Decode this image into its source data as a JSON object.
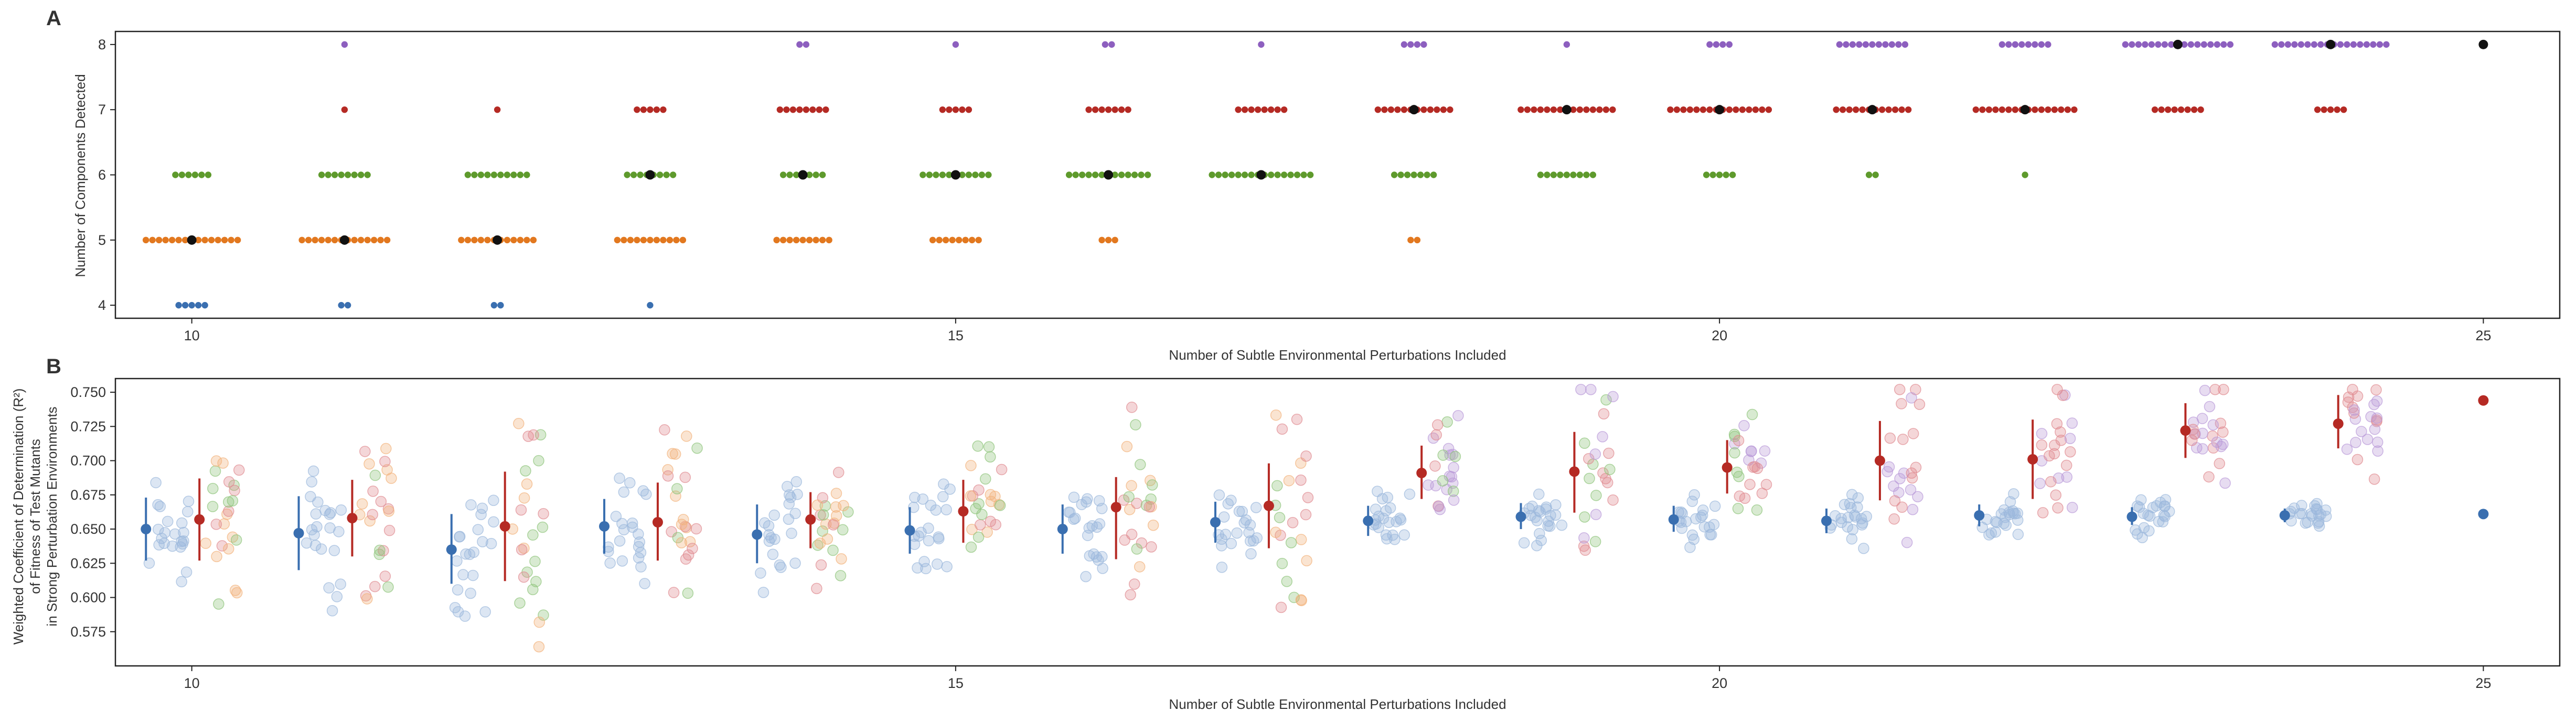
{
  "figure": {
    "panel_a_letter": "A",
    "panel_b_letter": "B"
  },
  "chart_data": [
    {
      "type": "scatter",
      "panel": "A",
      "xlabel": "Number of Subtle Environmental Perturbations Included",
      "ylabel": "Number of Components Detected",
      "xlim": [
        9.5,
        25.5
      ],
      "ylim": [
        3.8,
        8.2
      ],
      "xticks": [
        10,
        15,
        20,
        25
      ],
      "yticks": [
        4,
        5,
        6,
        7,
        8
      ],
      "grid": false,
      "colors": {
        "4": "#3a6fb0",
        "5": "#e2781f",
        "6": "#5e9a2c",
        "7": "#b52a24",
        "8": "#8d5fbf",
        "mean": "#111111"
      },
      "groups": [
        {
          "x": 10,
          "counts": {
            "4": 5,
            "5": 15,
            "6": 6,
            "7": 0,
            "8": 0
          },
          "mean": 5.0
        },
        {
          "x": 11,
          "counts": {
            "4": 2,
            "5": 14,
            "6": 8,
            "7": 1,
            "8": 1
          },
          "mean": 5.0
        },
        {
          "x": 12,
          "counts": {
            "4": 2,
            "5": 12,
            "6": 10,
            "7": 1,
            "8": 0
          },
          "mean": 5.0
        },
        {
          "x": 13,
          "counts": {
            "4": 1,
            "5": 11,
            "6": 8,
            "7": 5,
            "8": 0
          },
          "mean": 6.0
        },
        {
          "x": 14,
          "counts": {
            "4": 0,
            "5": 9,
            "6": 7,
            "7": 8,
            "8": 2
          },
          "mean": 6.0
        },
        {
          "x": 15,
          "counts": {
            "4": 0,
            "5": 8,
            "6": 11,
            "7": 5,
            "8": 1
          },
          "mean": 6.0
        },
        {
          "x": 16,
          "counts": {
            "4": 0,
            "5": 3,
            "6": 13,
            "7": 7,
            "8": 2
          },
          "mean": 6.0
        },
        {
          "x": 17,
          "counts": {
            "4": 0,
            "5": 0,
            "6": 16,
            "7": 8,
            "8": 1
          },
          "mean": 6.0
        },
        {
          "x": 18,
          "counts": {
            "4": 0,
            "5": 2,
            "6": 7,
            "7": 12,
            "8": 4
          },
          "mean": 7.0
        },
        {
          "x": 19,
          "counts": {
            "4": 0,
            "5": 0,
            "6": 9,
            "7": 15,
            "8": 1
          },
          "mean": 7.0
        },
        {
          "x": 20,
          "counts": {
            "4": 0,
            "5": 0,
            "6": 5,
            "7": 16,
            "8": 4
          },
          "mean": 7.0
        },
        {
          "x": 21,
          "counts": {
            "4": 0,
            "5": 0,
            "6": 2,
            "7": 12,
            "8": 11
          },
          "mean": 7.0
        },
        {
          "x": 22,
          "counts": {
            "4": 0,
            "5": 0,
            "6": 1,
            "7": 16,
            "8": 8
          },
          "mean": 7.0
        },
        {
          "x": 23,
          "counts": {
            "4": 0,
            "5": 0,
            "6": 0,
            "7": 8,
            "8": 17
          },
          "mean": 8.0
        },
        {
          "x": 24,
          "counts": {
            "4": 0,
            "5": 0,
            "6": 0,
            "7": 5,
            "8": 18
          },
          "mean": 8.0
        },
        {
          "x": 25,
          "counts": {
            "4": 0,
            "5": 0,
            "6": 0,
            "7": 0,
            "8": 1
          },
          "mean": 8.0
        }
      ]
    },
    {
      "type": "scatter",
      "panel": "B",
      "xlabel": "Number of Subtle Environmental Perturbations Included",
      "ylabel_lines": [
        "Weighted Coefficient of Determination (R²)",
        "of Fitness of Test Mutants",
        "in Strong Perturbation Environments"
      ],
      "xlim": [
        9.5,
        25.5
      ],
      "ylim": [
        0.55,
        0.76
      ],
      "xticks": [
        10,
        15,
        20,
        25
      ],
      "yticks": [
        "0.575",
        "0.600",
        "0.625",
        "0.650",
        "0.675",
        "0.700",
        "0.725",
        "0.750"
      ],
      "grid": false,
      "colors": {
        "blue": "#3a6fb0",
        "red": "#b52a24",
        "blue_light": "#9bb8dc",
        "orange_light": "#f2b27a",
        "green_light": "#8fc47a",
        "red_light": "#e08a90",
        "purple_light": "#b99ad8"
      },
      "summary": [
        {
          "x": 10,
          "blue": [
            0.65,
            0.627,
            0.673
          ],
          "red": [
            0.657,
            0.627,
            0.687
          ]
        },
        {
          "x": 11,
          "blue": [
            0.647,
            0.62,
            0.674
          ],
          "red": [
            0.658,
            0.63,
            0.686
          ]
        },
        {
          "x": 12,
          "blue": [
            0.635,
            0.61,
            0.661
          ],
          "red": [
            0.652,
            0.612,
            0.692
          ]
        },
        {
          "x": 13,
          "blue": [
            0.652,
            0.632,
            0.672
          ],
          "red": [
            0.655,
            0.627,
            0.684
          ]
        },
        {
          "x": 14,
          "blue": [
            0.646,
            0.625,
            0.668
          ],
          "red": [
            0.657,
            0.636,
            0.677
          ]
        },
        {
          "x": 15,
          "blue": [
            0.649,
            0.632,
            0.666
          ],
          "red": [
            0.663,
            0.64,
            0.686
          ]
        },
        {
          "x": 16,
          "blue": [
            0.65,
            0.632,
            0.668
          ],
          "red": [
            0.666,
            0.628,
            0.688
          ]
        },
        {
          "x": 17,
          "blue": [
            0.655,
            0.64,
            0.67
          ],
          "red": [
            0.667,
            0.636,
            0.698
          ]
        },
        {
          "x": 18,
          "blue": [
            0.656,
            0.645,
            0.667
          ],
          "red": [
            0.691,
            0.672,
            0.711
          ]
        },
        {
          "x": 19,
          "blue": [
            0.659,
            0.65,
            0.669
          ],
          "red": [
            0.692,
            0.662,
            0.721
          ]
        },
        {
          "x": 20,
          "blue": [
            0.657,
            0.648,
            0.667
          ],
          "red": [
            0.695,
            0.676,
            0.715
          ]
        },
        {
          "x": 21,
          "blue": [
            0.656,
            0.647,
            0.665
          ],
          "red": [
            0.7,
            0.671,
            0.729
          ]
        },
        {
          "x": 22,
          "blue": [
            0.66,
            0.652,
            0.668
          ],
          "red": [
            0.701,
            0.672,
            0.73
          ]
        },
        {
          "x": 23,
          "blue": [
            0.659,
            0.653,
            0.666
          ],
          "red": [
            0.722,
            0.702,
            0.742
          ]
        },
        {
          "x": 24,
          "blue": [
            0.66,
            0.655,
            0.665
          ],
          "red": [
            0.727,
            0.709,
            0.748
          ]
        },
        {
          "x": 25,
          "blue": [
            0.661,
            0.661,
            0.661
          ],
          "red": [
            0.744,
            0.744,
            0.744
          ]
        }
      ]
    }
  ]
}
